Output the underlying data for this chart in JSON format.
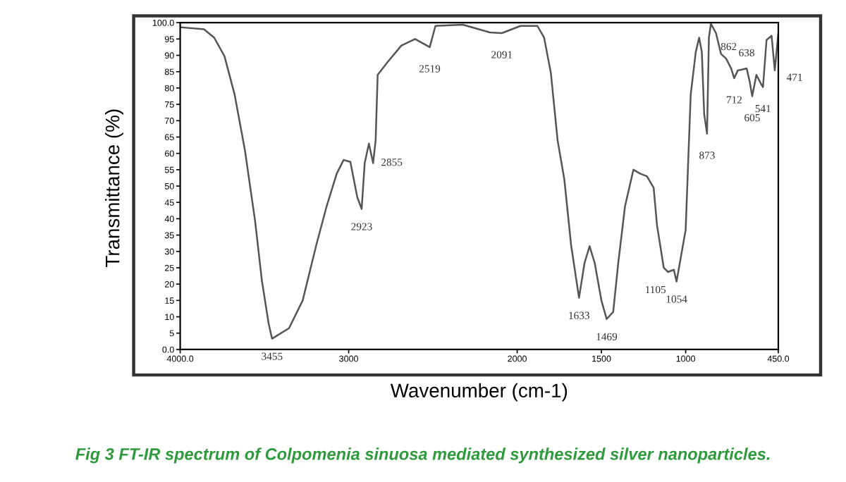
{
  "chart_data": {
    "type": "line",
    "xlabel": "Wavenumber (cm-1)",
    "ylabel": "Transmittance (%)",
    "xlim": [
      4000,
      450
    ],
    "ylim": [
      0,
      100
    ],
    "xticks": [
      {
        "value": 4000,
        "label": "4000.0"
      },
      3000,
      2000,
      1500,
      1000,
      {
        "value": 450,
        "label": "450.0"
      }
    ],
    "yticks": [
      {
        "value": 0,
        "label": "0.0"
      },
      5,
      10,
      15,
      20,
      25,
      30,
      35,
      40,
      45,
      50,
      55,
      60,
      65,
      70,
      75,
      80,
      85,
      90,
      95,
      {
        "value": 100,
        "label": "100.0"
      }
    ],
    "grid": false,
    "legend": false,
    "marker": "none",
    "line_style": "solid",
    "series": [
      {
        "color": "#555555",
        "x": [
          4000,
          3859,
          3798,
          3737,
          3677,
          3616,
          3556,
          3515,
          3475,
          3455,
          3354,
          3273,
          3192,
          3131,
          3071,
          3030,
          2990,
          2949,
          2923,
          2905,
          2880,
          2855,
          2840,
          2828,
          2768,
          2687,
          2606,
          2519,
          2485,
          2323,
          2162,
          2091,
          1980,
          1880,
          1840,
          1800,
          1760,
          1720,
          1680,
          1633,
          1600,
          1570,
          1540,
          1500,
          1469,
          1430,
          1400,
          1360,
          1310,
          1270,
          1230,
          1190,
          1170,
          1130,
          1105,
          1070,
          1054,
          1000,
          970,
          940,
          920,
          904,
          890,
          873,
          862,
          850,
          820,
          790,
          760,
          730,
          712,
          690,
          670,
          638,
          620,
          605,
          580,
          550,
          541,
          520,
          490,
          471,
          450
        ],
        "values": [
          98.6,
          98,
          95.4,
          89.7,
          78,
          61,
          39.5,
          21,
          7.9,
          3.3,
          6.5,
          15,
          32,
          43.8,
          53.8,
          58,
          57.4,
          46.6,
          43,
          57,
          63,
          57,
          64,
          84,
          88,
          93,
          95,
          92.5,
          99,
          99.4,
          97,
          96.8,
          99,
          99,
          95.4,
          84.6,
          64,
          52,
          32,
          15.8,
          26.5,
          31.6,
          26.5,
          15,
          9.3,
          11.5,
          26.5,
          43.8,
          55,
          53.8,
          53,
          49.5,
          38,
          25,
          23.7,
          24.4,
          20.8,
          36.6,
          78,
          91,
          95.4,
          91,
          72,
          66,
          95.4,
          99.7,
          96.8,
          90.4,
          89,
          86,
          83,
          85.4,
          85.6,
          86,
          82,
          77.5,
          84,
          81,
          80.3,
          94.7,
          96,
          85.4,
          96.8
        ]
      }
    ],
    "annotations": [
      {
        "text": "3455",
        "x": 3455,
        "y": 3.3
      },
      {
        "text": "2923",
        "x": 2923,
        "y": 43
      },
      {
        "text": "2855",
        "x": 2855,
        "y": 57
      },
      {
        "text": "2519",
        "x": 2519,
        "y": 92.5
      },
      {
        "text": "2091",
        "x": 2091,
        "y": 96.8
      },
      {
        "text": "1633",
        "x": 1633,
        "y": 15.8
      },
      {
        "text": "1469",
        "x": 1469,
        "y": 9.3
      },
      {
        "text": "1105",
        "x": 1105,
        "y": 23.7
      },
      {
        "text": "1054",
        "x": 1054,
        "y": 20.8
      },
      {
        "text": "873",
        "x": 873,
        "y": 66
      },
      {
        "text": "862",
        "x": 862,
        "y": 95.4
      },
      {
        "text": "712",
        "x": 712,
        "y": 83
      },
      {
        "text": "638",
        "x": 638,
        "y": 86
      },
      {
        "text": "605",
        "x": 605,
        "y": 77.5
      },
      {
        "text": "541",
        "x": 541,
        "y": 80.3
      },
      {
        "text": "471",
        "x": 471,
        "y": 85.4
      },
      "Fig 3 FT-IR spectrum of Colpomenia sinuosa mediated synthesized silver nanoparticles."
    ]
  }
}
